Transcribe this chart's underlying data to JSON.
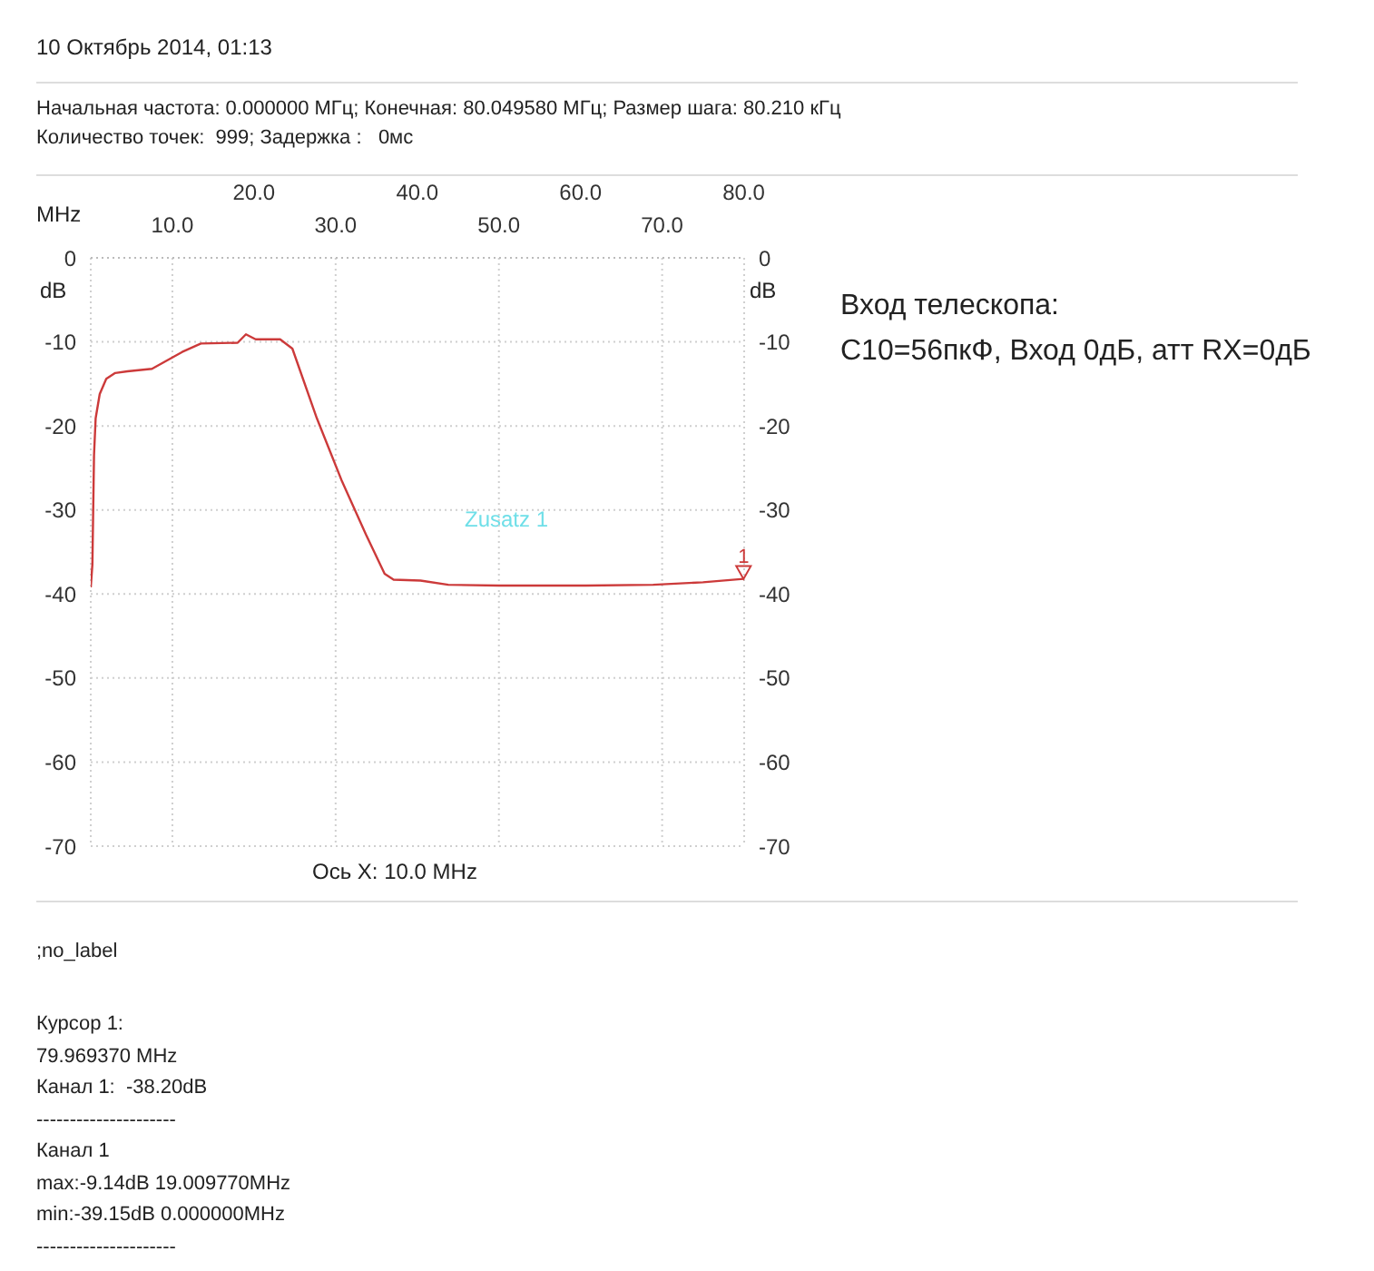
{
  "chart_data": {
    "type": "line",
    "title": "10 Октябрь 2014, 01:13",
    "subtitle": "Начальная частота: 0.000000 МГц; Конечная: 80.049580 МГц; Размер шага: 80.210 кГц",
    "xlabel": "MHz",
    "ylabel": "dB",
    "y2label": "dB",
    "x": [
      0,
      0.2,
      0.4,
      0.6,
      1.1,
      1.9,
      3.0,
      4.5,
      7.5,
      11.2,
      13.5,
      18.0,
      19.01,
      20.2,
      23.2,
      24.7,
      27.7,
      30.7,
      33.7,
      36.0,
      37.1,
      40.4,
      43.8,
      50.0,
      60.7,
      68.9,
      75.0,
      79.97
    ],
    "series": [
      {
        "color": "#cc3a3a",
        "values": [
          -39.2,
          -36.5,
          -23.5,
          -19.1,
          -16.2,
          -14.4,
          -13.7,
          -13.5,
          -13.2,
          -11.2,
          -10.2,
          -10.1,
          -9.1,
          -9.7,
          -9.7,
          -10.8,
          -19.1,
          -26.4,
          -32.9,
          -37.6,
          -38.3,
          -38.4,
          -38.9,
          -39.0,
          -39.0,
          -38.9,
          -38.6,
          -38.2
        ]
      }
    ],
    "xlim": [
      0,
      80.04958
    ],
    "xticks": [
      {
        "value": 0,
        "label": null
      },
      {
        "value": 10,
        "label": "10.0"
      },
      {
        "value": 30,
        "label": "30.0"
      },
      {
        "value": 50,
        "label": "50.0"
      },
      {
        "value": 70,
        "label": "70.0"
      }
    ],
    "x2lim": [
      0,
      80.04958
    ],
    "x2ticks": [
      {
        "value": 20,
        "label": "20.0"
      },
      {
        "value": 40,
        "label": "40.0"
      },
      {
        "value": 60,
        "label": "60.0"
      },
      {
        "value": 80,
        "label": "80.0"
      }
    ],
    "ylim": [
      -70,
      0
    ],
    "yticks": [
      0,
      -10,
      -20,
      -30,
      -40,
      -50,
      -60,
      -70
    ],
    "y2lim": [
      -70,
      0
    ],
    "y2ticks": [
      0,
      -10,
      -20,
      -30,
      -40,
      -50,
      -60,
      -70
    ],
    "grid": true,
    "legend": false,
    "marker": "none",
    "line_style": "solid",
    "annotations": [
      "Количество точек:  999; Задержка :   0мс",
      "Вход телескопа:",
      "C10=56пкФ, Вход 0дБ, атт RX=0дБ",
      "Zusatz 1",
      "Ось X: 10.0 MHz",
      ";no_label",
      "Курсор 1:",
      "79.969370 MHz",
      "Канал 1:  -38.20dB",
      "---------------------",
      "Канал 1",
      "max:-9.14dB 19.009770MHz",
      "min:-39.15dB 0.000000MHz",
      "---------------------",
      {
        "text": "1",
        "x": 79.96937,
        "y": -38.2
      }
    ]
  }
}
